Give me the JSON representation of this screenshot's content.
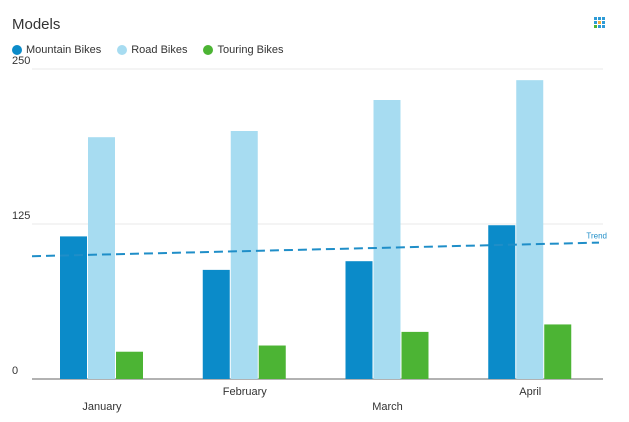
{
  "title": "Models",
  "menu": {
    "icon": "grid-menu-icon"
  },
  "chart_data": {
    "type": "bar",
    "categories": [
      "January",
      "February",
      "March",
      "April"
    ],
    "series": [
      {
        "name": "Mountain Bikes",
        "values": [
          115,
          88,
          95,
          124
        ],
        "color": "#0b8bc9"
      },
      {
        "name": "Road Bikes",
        "values": [
          195,
          200,
          225,
          241
        ],
        "color": "#a7dcf1"
      },
      {
        "name": "Touring Bikes",
        "values": [
          22,
          27,
          38,
          44
        ],
        "color": "#4cb434"
      }
    ],
    "trend": {
      "label": "Trend",
      "start": 99,
      "end": 110,
      "color": "#1f8ec8"
    },
    "yticks": [
      "0",
      "125",
      "250"
    ],
    "ylim": [
      0,
      250
    ],
    "grid": true,
    "legend": "top-left"
  }
}
